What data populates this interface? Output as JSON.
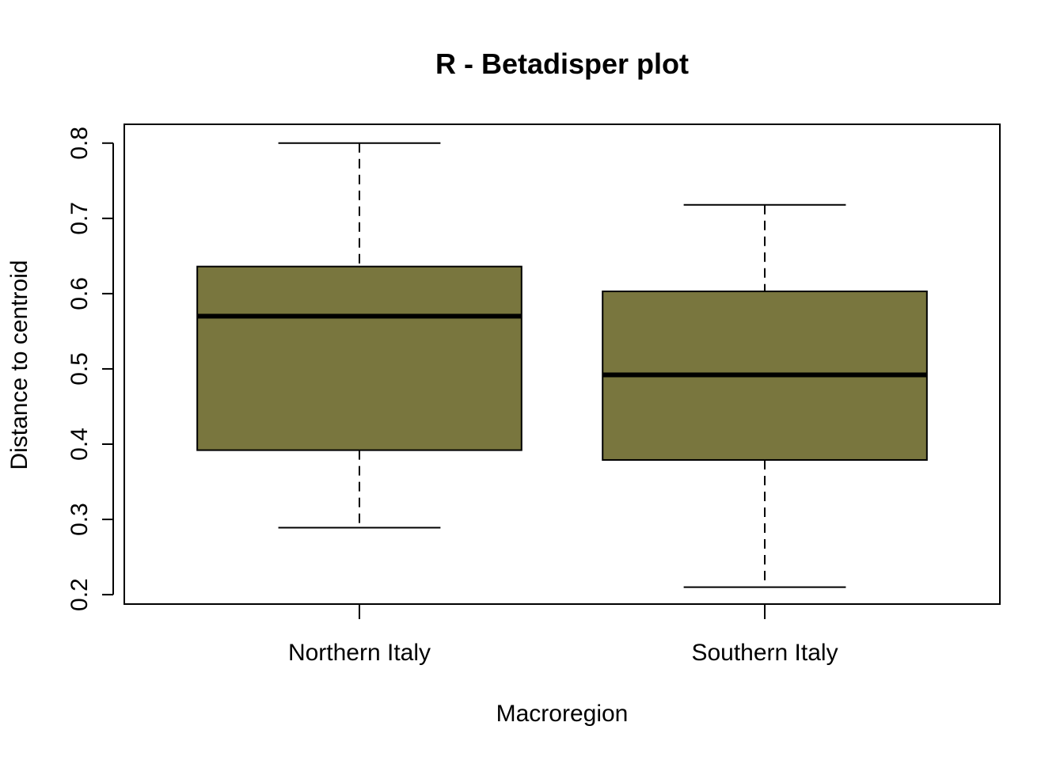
{
  "chart_data": {
    "type": "box",
    "title": "R - Betadisper plot",
    "xlabel": "Macroregion",
    "ylabel": "Distance to centroid",
    "ylim": [
      0.1875,
      0.825
    ],
    "yticks": [
      0.2,
      0.3,
      0.4,
      0.5,
      0.6,
      0.7,
      0.8
    ],
    "ytick_labels": [
      "0.2",
      "0.3",
      "0.4",
      "0.5",
      "0.6",
      "0.7",
      "0.8"
    ],
    "categories": [
      "Northern Italy",
      "Southern Italy"
    ],
    "boxes": [
      {
        "category": "Northern Italy",
        "whisker_low": 0.289,
        "q1": 0.392,
        "median": 0.57,
        "q3": 0.636,
        "whisker_high": 0.8
      },
      {
        "category": "Southern Italy",
        "whisker_low": 0.21,
        "q1": 0.379,
        "median": 0.492,
        "q3": 0.603,
        "whisker_high": 0.718
      }
    ],
    "box_color": "#79763E",
    "grid": false,
    "legend": "none"
  }
}
